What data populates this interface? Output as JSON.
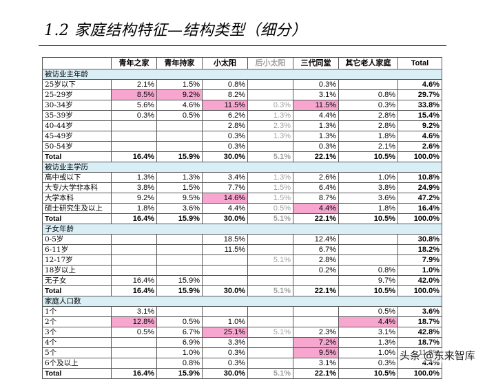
{
  "title": "1.2 家庭结构特征—结构类型（细分）",
  "columns": [
    "",
    "青年之家",
    "青年持家",
    "小太阳",
    "后小太阳",
    "三代同堂",
    "其它老人家庭",
    "Total"
  ],
  "sections": [
    {
      "label": "被访业主年龄",
      "rows": [
        {
          "label": "25岁以下",
          "cells": [
            "2.1%",
            "1.5%",
            "0.8%",
            "",
            "0.3%",
            "",
            "4.6%"
          ]
        },
        {
          "label": "25-29岁",
          "cells": [
            "8.5%",
            "9.2%",
            "8.2%",
            "",
            "3.1%",
            "0.8%",
            "29.7%"
          ],
          "hl": [
            0,
            1
          ]
        },
        {
          "label": "30-34岁",
          "cells": [
            "5.6%",
            "4.6%",
            "11.5%",
            "0.3%",
            "11.5%",
            "0.3%",
            "33.8%"
          ],
          "hl": [
            2,
            4
          ]
        },
        {
          "label": "35-39岁",
          "cells": [
            "0.3%",
            "0.5%",
            "6.2%",
            "1.3%",
            "4.4%",
            "2.8%",
            "15.4%"
          ]
        },
        {
          "label": "40-44岁",
          "cells": [
            "",
            "",
            "2.8%",
            "2.3%",
            "1.3%",
            "2.8%",
            "9.2%"
          ]
        },
        {
          "label": "45-49岁",
          "cells": [
            "",
            "",
            "0.3%",
            "1.3%",
            "1.3%",
            "1.8%",
            "4.6%"
          ]
        },
        {
          "label": "50-54岁",
          "cells": [
            "",
            "",
            "0.3%",
            "",
            "0.3%",
            "2.1%",
            "2.6%"
          ]
        }
      ],
      "total": [
        "16.4%",
        "15.9%",
        "30.0%",
        "5.1%",
        "22.1%",
        "10.5%",
        "100.0%"
      ]
    },
    {
      "label": "被访业主学历",
      "rows": [
        {
          "label": "高中或以下",
          "cells": [
            "1.3%",
            "1.3%",
            "3.4%",
            "1.3%",
            "2.6%",
            "1.0%",
            "10.8%"
          ]
        },
        {
          "label": "大专/大学非本科",
          "cells": [
            "3.8%",
            "1.5%",
            "7.7%",
            "1.5%",
            "6.4%",
            "3.8%",
            "24.9%"
          ]
        },
        {
          "label": "大学本科",
          "cells": [
            "9.2%",
            "9.5%",
            "14.6%",
            "1.5%",
            "8.7%",
            "3.6%",
            "47.2%"
          ],
          "hl": [
            2
          ]
        },
        {
          "label": "硕士研究生及以上",
          "cells": [
            "1.8%",
            "3.6%",
            "4.4%",
            "0.5%",
            "4.4%",
            "1.8%",
            "16.4%"
          ],
          "hl": [
            4
          ]
        }
      ],
      "total": [
        "16.4%",
        "15.9%",
        "30.0%",
        "5.1%",
        "22.1%",
        "10.5%",
        "100.0%"
      ]
    },
    {
      "label": "子女年龄",
      "rows": [
        {
          "label": "0-5岁",
          "cells": [
            "",
            "",
            "18.5%",
            "",
            "12.4%",
            "",
            "30.8%"
          ]
        },
        {
          "label": "6-11岁",
          "cells": [
            "",
            "",
            "11.5%",
            "",
            "6.7%",
            "",
            "18.2%"
          ]
        },
        {
          "label": "12-17岁",
          "cells": [
            "",
            "",
            "",
            "5.1%",
            "2.8%",
            "",
            "7.9%"
          ]
        },
        {
          "label": "18岁以上",
          "cells": [
            "",
            "",
            "",
            "",
            "0.2%",
            "0.8%",
            "1.0%"
          ]
        },
        {
          "label": "无子女",
          "cells": [
            "16.4%",
            "15.9%",
            "",
            "",
            "",
            "9.7%",
            "42.0%"
          ]
        }
      ],
      "total": [
        "16.4%",
        "15.9%",
        "30.0%",
        "5.1%",
        "22.1%",
        "10.5%",
        "100.0%"
      ]
    },
    {
      "label": "家庭人口数",
      "rows": [
        {
          "label": "1个",
          "cells": [
            "3.1%",
            "",
            "",
            "",
            "",
            "0.5%",
            "3.6%"
          ]
        },
        {
          "label": "2个",
          "cells": [
            "12.8%",
            "0.5%",
            "1.0%",
            "",
            "",
            "4.4%",
            "18.7%"
          ],
          "hl": [
            0,
            5
          ]
        },
        {
          "label": "3个",
          "cells": [
            "0.5%",
            "6.7%",
            "25.1%",
            "5.1%",
            "2.3%",
            "3.1%",
            "42.8%"
          ],
          "hl": [
            2
          ]
        },
        {
          "label": "4个",
          "cells": [
            "",
            "6.9%",
            "3.3%",
            "",
            "7.2%",
            "1.3%",
            "18.7%"
          ],
          "hl": [
            4
          ]
        },
        {
          "label": "5个",
          "cells": [
            "",
            "1.0%",
            "0.3%",
            "",
            "9.5%",
            "1.0%",
            "11.8%"
          ],
          "hl": [
            4
          ]
        },
        {
          "label": "6个及以上",
          "cells": [
            "",
            "0.8%",
            "0.3%",
            "",
            "3.1%",
            "0.3%",
            "4.4%"
          ]
        }
      ],
      "total": [
        "16.4%",
        "15.9%",
        "30.0%",
        "5.1%",
        "22.1%",
        "10.5%",
        "100.0%"
      ]
    }
  ],
  "total_label": "Total",
  "pale_column_index": 4,
  "highlight_color": "#f7a7cf",
  "section_color": "#d9eef5",
  "watermark": "头条 @东来智库"
}
